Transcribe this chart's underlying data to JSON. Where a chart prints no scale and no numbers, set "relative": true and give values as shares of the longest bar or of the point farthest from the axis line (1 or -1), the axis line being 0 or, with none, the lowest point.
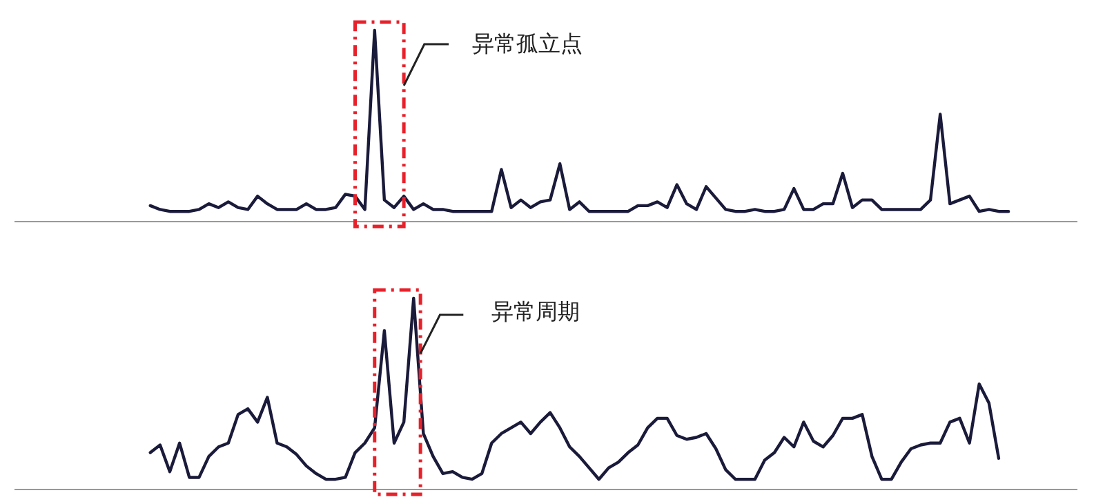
{
  "chart_data": [
    {
      "type": "line",
      "relative": true,
      "categories": [
        null,
        null,
        null,
        null,
        null,
        null,
        null,
        null,
        null,
        null,
        null,
        null,
        null,
        null,
        null,
        null,
        null,
        null,
        null,
        null,
        null,
        null,
        null,
        null,
        null,
        null,
        null,
        null,
        null,
        null,
        null,
        null,
        null,
        null,
        null,
        null,
        null,
        null,
        null,
        null,
        null,
        null,
        null,
        null,
        null,
        null,
        null,
        null,
        null,
        null,
        null,
        null,
        null,
        null,
        null,
        null,
        null,
        null,
        null,
        null,
        null,
        null,
        null,
        null,
        null,
        null,
        null,
        null,
        null,
        null,
        null,
        null,
        null,
        null,
        null,
        null,
        null,
        null,
        null,
        null,
        null,
        null,
        null,
        null,
        null,
        null,
        null,
        null,
        null,
        null,
        null,
        null,
        null,
        null,
        null,
        null,
        null,
        null,
        null,
        null,
        null,
        null,
        null,
        null,
        null,
        null,
        null,
        null,
        null,
        null
      ],
      "series": [
        {
          "color": "#1a1a3a",
          "values": [
            null,
            null,
            null,
            null,
            null,
            null,
            null,
            null,
            null,
            null,
            null,
            null,
            null,
            null,
            0.08,
            0.06,
            0.05,
            0.05,
            0.05,
            0.06,
            0.09,
            0.07,
            0.1,
            0.07,
            0.06,
            0.13,
            0.09,
            0.06,
            0.06,
            0.06,
            0.09,
            0.06,
            0.06,
            0.07,
            0.14,
            0.13,
            0.06,
            1.0,
            0.11,
            0.07,
            0.13,
            0.06,
            0.09,
            0.06,
            0.06,
            0.05,
            0.05,
            0.05,
            0.05,
            0.05,
            0.27,
            0.07,
            0.11,
            0.07,
            0.1,
            0.11,
            0.3,
            0.06,
            0.1,
            0.05,
            0.05,
            0.05,
            0.05,
            0.05,
            0.08,
            0.08,
            0.1,
            0.07,
            0.19,
            0.09,
            0.06,
            0.18,
            0.12,
            0.06,
            0.05,
            0.05,
            0.06,
            0.05,
            0.05,
            0.06,
            0.17,
            0.06,
            0.06,
            0.09,
            0.09,
            0.25,
            0.07,
            0.11,
            0.11,
            0.06,
            0.06,
            0.06,
            0.06,
            0.06,
            0.11,
            0.56,
            0.09,
            0.11,
            0.13,
            0.05,
            0.06,
            0.05,
            0.05,
            null,
            null,
            null,
            null,
            null,
            null,
            null
          ]
        }
      ],
      "annotations": [
        "异常孤立点"
      ]
    },
    {
      "type": "line",
      "relative": true,
      "categories": [
        null,
        null,
        null,
        null,
        null,
        null,
        null,
        null,
        null,
        null,
        null,
        null,
        null,
        null,
        null,
        null,
        null,
        null,
        null,
        null,
        null,
        null,
        null,
        null,
        null,
        null,
        null,
        null,
        null,
        null,
        null,
        null,
        null,
        null,
        null,
        null,
        null,
        null,
        null,
        null,
        null,
        null,
        null,
        null,
        null,
        null,
        null,
        null,
        null,
        null,
        null,
        null,
        null,
        null,
        null,
        null,
        null,
        null,
        null,
        null,
        null,
        null,
        null,
        null,
        null,
        null,
        null,
        null,
        null,
        null,
        null,
        null,
        null,
        null,
        null,
        null,
        null,
        null,
        null,
        null,
        null,
        null,
        null,
        null,
        null,
        null,
        null,
        null,
        null,
        null,
        null,
        null,
        null,
        null,
        null,
        null,
        null,
        null,
        null,
        null,
        null,
        null,
        null,
        null,
        null,
        null,
        null,
        null,
        null,
        null
      ],
      "series": [
        {
          "color": "#1a1a3a",
          "values": [
            null,
            null,
            null,
            null,
            null,
            null,
            null,
            null,
            null,
            null,
            null,
            null,
            null,
            null,
            0.19,
            0.23,
            0.09,
            0.24,
            0.06,
            0.06,
            0.17,
            0.22,
            0.24,
            0.39,
            0.42,
            0.35,
            0.48,
            0.24,
            0.22,
            0.18,
            0.12,
            0.08,
            0.05,
            0.05,
            0.06,
            0.19,
            0.24,
            0.32,
            0.83,
            0.24,
            0.35,
            1.0,
            0.29,
            0.17,
            0.08,
            0.09,
            0.06,
            0.05,
            0.08,
            0.24,
            0.29,
            0.32,
            0.35,
            0.29,
            0.35,
            0.4,
            0.32,
            0.22,
            0.17,
            0.11,
            0.05,
            0.11,
            0.14,
            0.19,
            0.23,
            0.32,
            0.37,
            0.37,
            0.28,
            0.26,
            0.27,
            0.29,
            0.21,
            0.1,
            0.05,
            0.05,
            0.05,
            0.15,
            0.19,
            0.27,
            0.22,
            0.35,
            0.25,
            0.22,
            0.28,
            0.37,
            0.37,
            0.39,
            0.17,
            0.05,
            0.05,
            0.14,
            0.21,
            0.23,
            0.24,
            0.24,
            0.35,
            0.37,
            0.24,
            0.55,
            0.45,
            0.16,
            null,
            null,
            null,
            null,
            null,
            null,
            null,
            null
          ]
        }
      ],
      "annotations": [
        "异常周期"
      ]
    }
  ]
}
